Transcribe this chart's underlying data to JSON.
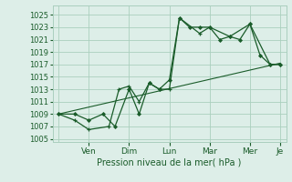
{
  "xlabel": "Pression niveau de la mer( hPa )",
  "bg_color": "#ddeee8",
  "grid_color": "#aacfbe",
  "line_color": "#1a5c2a",
  "ylim": [
    1004.5,
    1026.5
  ],
  "yticks": [
    1005,
    1007,
    1009,
    1011,
    1013,
    1015,
    1017,
    1019,
    1021,
    1023,
    1025
  ],
  "xlim": [
    -0.3,
    11.3
  ],
  "x_tick_pos": [
    1.5,
    3.5,
    5.5,
    7.5,
    9.5,
    11.0
  ],
  "x_labels": [
    "Ven",
    "Dim",
    "Lun",
    "Mar",
    "Mer",
    "Je"
  ],
  "series1_x": [
    0.0,
    0.8,
    1.5,
    2.2,
    2.8,
    3.5,
    4.0,
    4.5,
    5.0,
    5.5,
    6.0,
    6.5,
    7.0,
    7.5,
    8.0,
    8.5,
    9.0,
    9.5,
    10.0,
    10.5,
    11.0
  ],
  "series1_y": [
    1009,
    1009,
    1008,
    1009,
    1007,
    1013,
    1009,
    1014,
    1013,
    1014.5,
    1024.5,
    1023,
    1023,
    1023,
    1021,
    1021.5,
    1021,
    1023.5,
    1018.5,
    1017,
    1017
  ],
  "series2_x": [
    0.0,
    0.8,
    1.5,
    2.5,
    3.0,
    3.5,
    4.0,
    4.5,
    5.0,
    5.5,
    6.0,
    7.0,
    7.5,
    8.5,
    9.5,
    10.5,
    11.0
  ],
  "series2_y": [
    1009,
    1008,
    1006.5,
    1007,
    1013,
    1013.5,
    1011,
    1014,
    1013,
    1013,
    1024.5,
    1022,
    1023,
    1021.5,
    1023.5,
    1017,
    1017
  ],
  "trend_x": [
    0.0,
    11.0
  ],
  "trend_y": [
    1009,
    1017.2
  ],
  "vlines_x": [
    0.0,
    1.5,
    3.5,
    5.5,
    7.5,
    9.5,
    11.0
  ]
}
